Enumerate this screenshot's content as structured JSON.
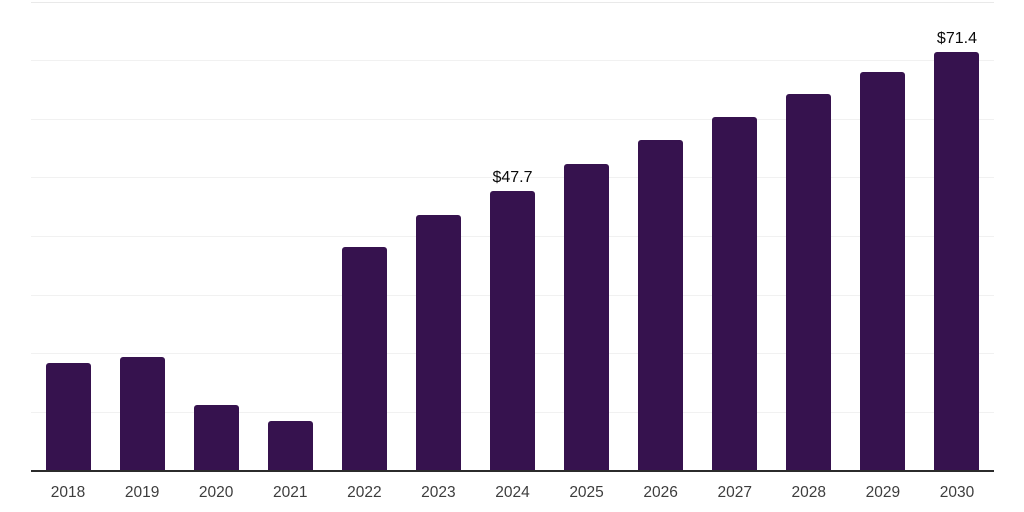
{
  "chart_data": {
    "type": "bar",
    "title": "",
    "xlabel": "",
    "ylabel": "",
    "categories": [
      "2018",
      "2019",
      "2020",
      "2021",
      "2022",
      "2023",
      "2024",
      "2025",
      "2026",
      "2027",
      "2028",
      "2029",
      "2030"
    ],
    "values": [
      18.4,
      19.5,
      11.3,
      8.5,
      38.2,
      43.7,
      47.7,
      52.4,
      56.5,
      60.4,
      64.3,
      68.0,
      71.4
    ],
    "annotations": [
      {
        "category": "2024",
        "label": "$47.7"
      },
      {
        "category": "2030",
        "label": "$71.4"
      }
    ],
    "ylim": [
      0,
      80
    ],
    "gridline_step": 10,
    "grid": "horizontal",
    "legend": "none",
    "y_tick_labels_visible": false,
    "colors": {
      "bar": "#36124e",
      "axis_line": "#2b2b2b",
      "gridline": "#f1f1f1",
      "top_gridline": "#e9e9e9",
      "tick_label": "#3d3d3d",
      "annotation_text": "#0a0a0a",
      "background": "#ffffff"
    }
  }
}
